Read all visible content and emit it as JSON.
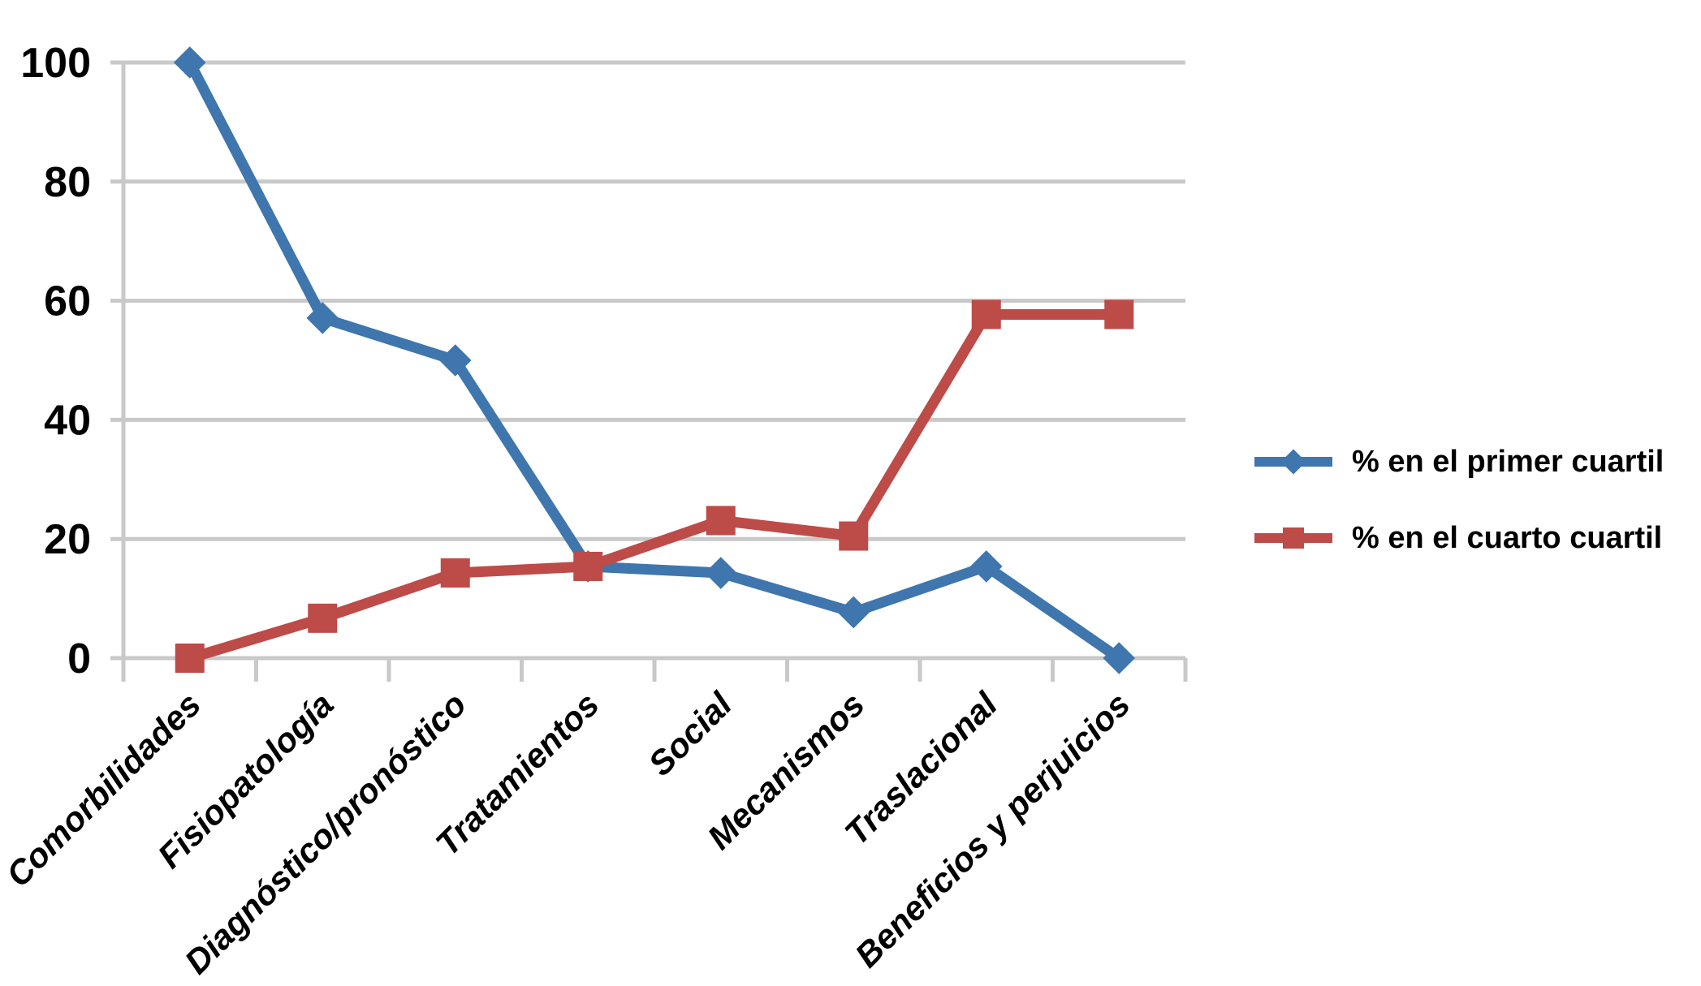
{
  "chart_data": {
    "type": "line",
    "title": "",
    "xlabel": "",
    "ylabel": "",
    "categories": [
      "Comorbilidades",
      "Fisiopatología",
      "Diagnóstico/pronóstico",
      "Tratamientos",
      "Social",
      "Mecanismos",
      "Traslacional",
      "Beneficios y perjuicios"
    ],
    "series": [
      {
        "name": "% en el primer cuartil",
        "marker": "diamond",
        "color": "#3E76AD",
        "values": [
          100,
          57.1,
          50,
          15.4,
          14.3,
          7.7,
          15.4,
          0
        ]
      },
      {
        "name": "% en el cuarto cuartil",
        "marker": "square",
        "color": "#BD4B48",
        "values": [
          0,
          6.7,
          14.3,
          15.4,
          23.1,
          20.5,
          57.7,
          57.7
        ]
      }
    ],
    "ylim": [
      0,
      100
    ],
    "yticks": [
      0,
      20,
      40,
      60,
      80,
      100
    ],
    "grid": "horizontal",
    "gridline_color": "#C9C9C9",
    "text_color": "#000000",
    "background": "#FFFFFF",
    "legend_position": "right"
  }
}
